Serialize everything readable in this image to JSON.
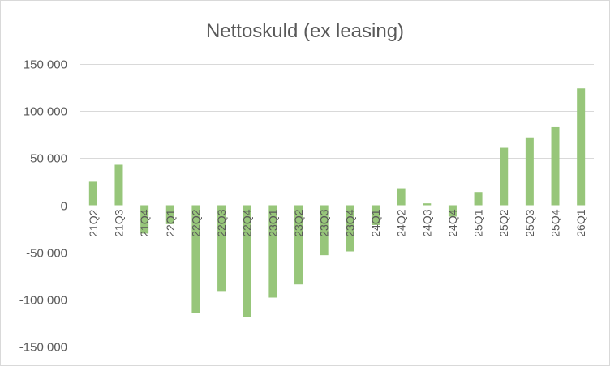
{
  "chart_data": {
    "type": "bar",
    "title": "Nettoskuld (ex leasing)",
    "xlabel": "",
    "ylabel": "",
    "categories": [
      "21Q2",
      "21Q3",
      "21Q4",
      "22Q1",
      "22Q2",
      "22Q3",
      "22Q4",
      "23Q1",
      "23Q2",
      "23Q3",
      "23Q4",
      "24Q1",
      "24Q2",
      "24Q3",
      "24Q4",
      "25Q1",
      "25Q2",
      "25Q3",
      "25Q4",
      "26Q1"
    ],
    "values": [
      25000,
      43000,
      -30000,
      -20000,
      -114000,
      -91000,
      -119000,
      -98000,
      -84000,
      -53000,
      -49000,
      -21000,
      18000,
      2000,
      -12000,
      14000,
      61000,
      72000,
      83000,
      124000
    ],
    "ylim": [
      -150000,
      150000
    ],
    "yticks": [
      150000,
      100000,
      50000,
      0,
      -50000,
      -100000,
      -150000
    ],
    "ytick_labels": [
      "150 000",
      "100 000",
      "50 000",
      "0",
      "-50 000",
      "-100 000",
      "-150 000"
    ],
    "grid": true,
    "legend": "none",
    "bar_color": "#97c67a",
    "grid_color": "#d9d9d9",
    "text_color": "#595959"
  }
}
